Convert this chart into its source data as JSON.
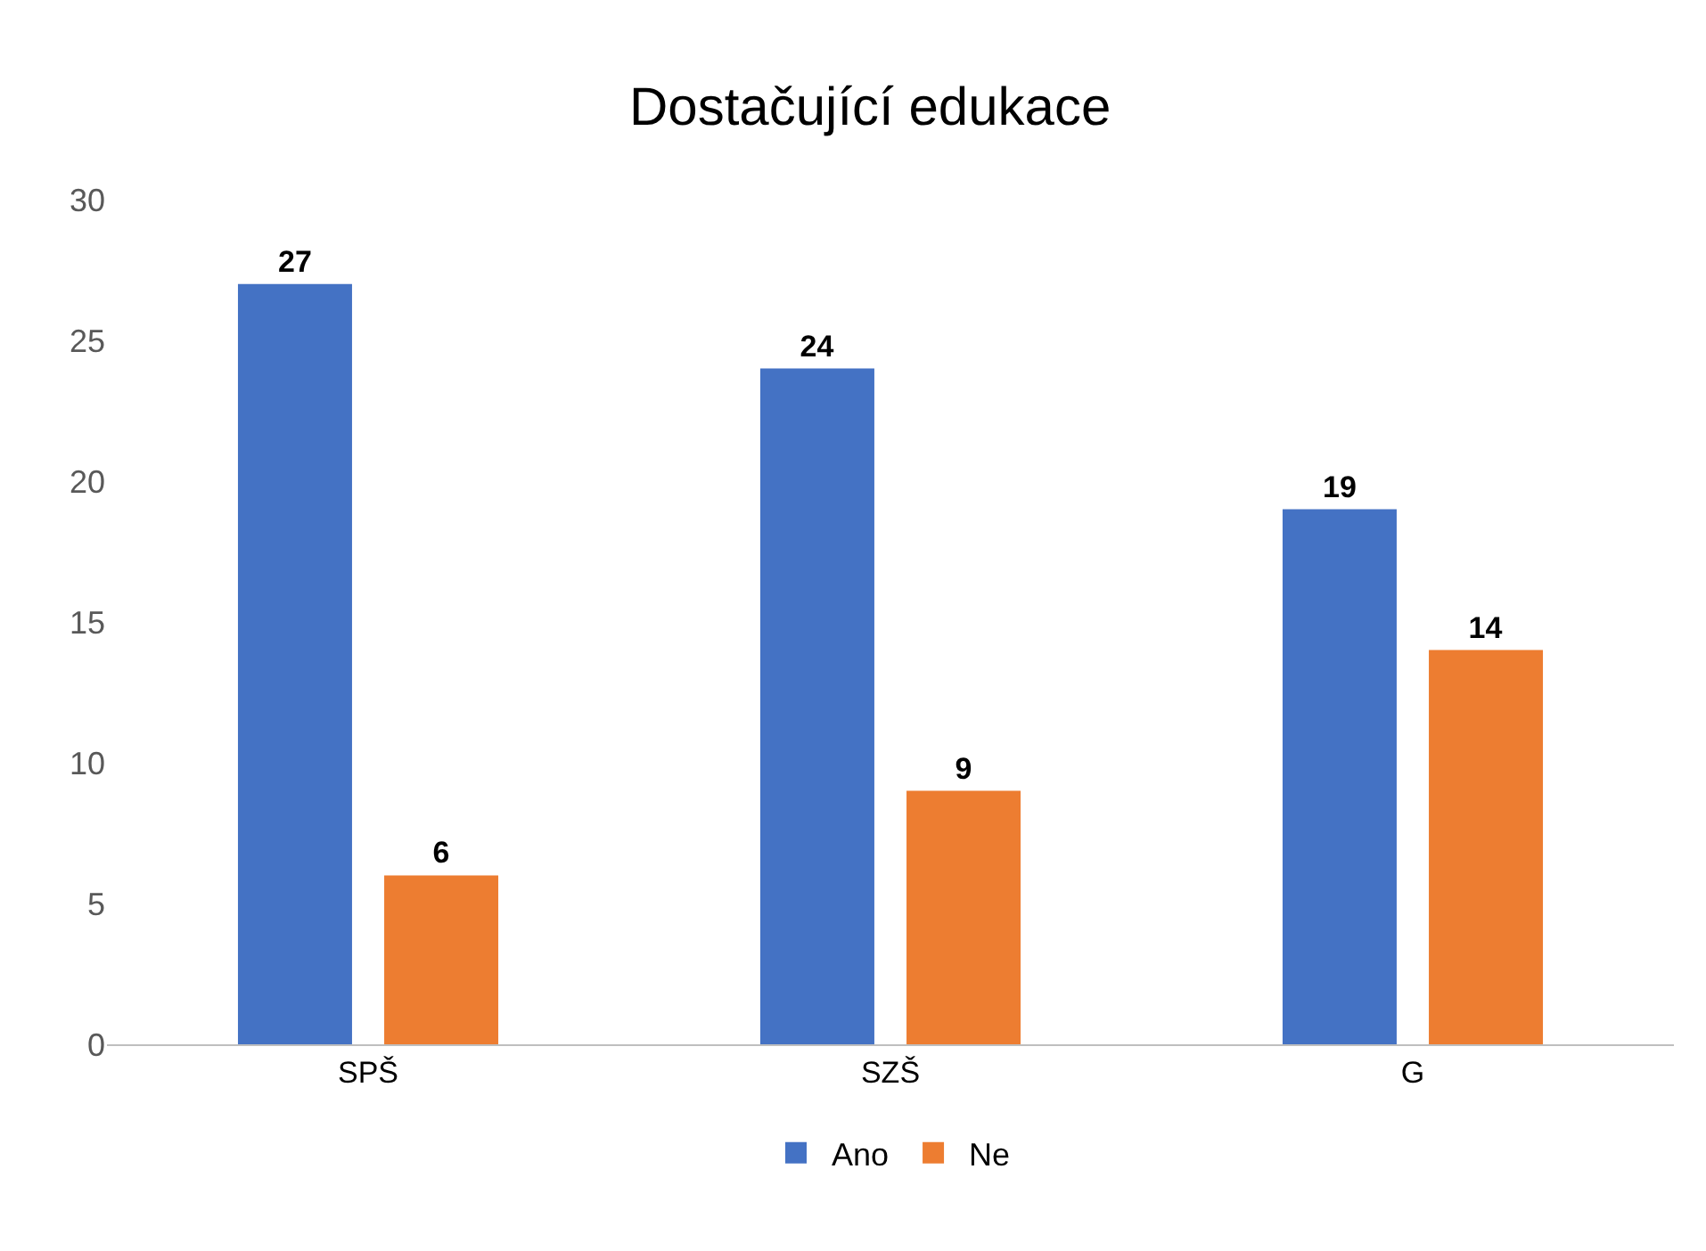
{
  "chart_data": {
    "type": "bar",
    "title": "Dostačující edukace",
    "categories": [
      "SPŠ",
      "SZŠ",
      "G"
    ],
    "series": [
      {
        "name": "Ano",
        "color": "#4472c4",
        "values": [
          27,
          24,
          19
        ]
      },
      {
        "name": "Ne",
        "color": "#ed7d31",
        "values": [
          6,
          9,
          14
        ]
      }
    ],
    "ylim": [
      0,
      30
    ],
    "yticks": [
      0,
      5,
      10,
      15,
      20,
      25,
      30
    ],
    "grid": false,
    "legend": "bottom",
    "data_labels": true
  }
}
